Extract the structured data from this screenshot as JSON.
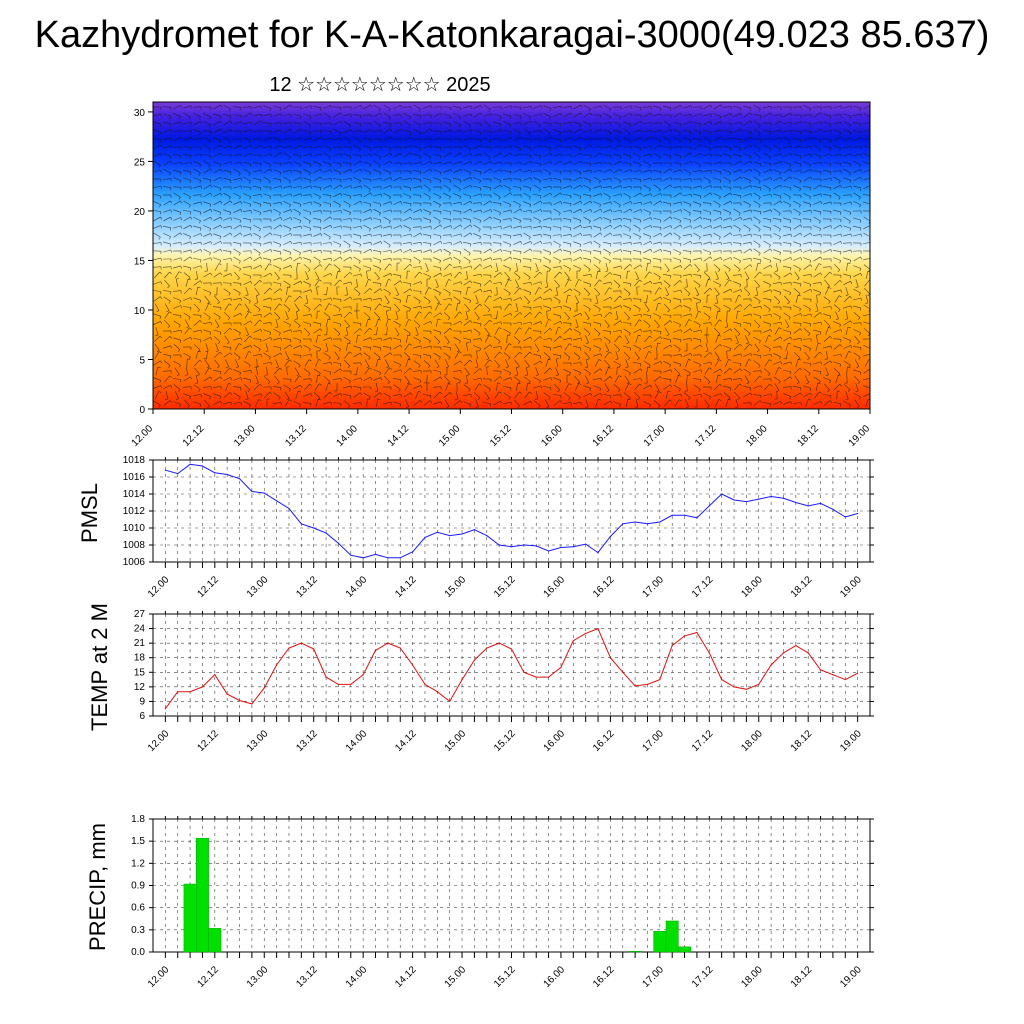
{
  "header": {
    "title": "Kazhydromet for K-A-Katonkaragai-3000(49.023 85.637)",
    "subtitle": "12 ☆☆☆☆☆☆☆☆ 2025"
  },
  "time_labels": [
    "12.00",
    "12.12",
    "13.00",
    "13.12",
    "14.00",
    "14.12",
    "15.00",
    "15.12",
    "16.00",
    "16.12",
    "17.00",
    "17.12",
    "18.00",
    "18.12",
    "19.00"
  ],
  "chart_data": [
    {
      "type": "heatmap",
      "name": "cross-section",
      "x_labels": [
        "12.00",
        "12.12",
        "13.00",
        "13.12",
        "14.00",
        "14.12",
        "15.00",
        "15.12",
        "16.00",
        "16.12",
        "17.00",
        "17.12",
        "18.00",
        "18.12",
        "19.00"
      ],
      "yticks": [
        0,
        5,
        10,
        15,
        20,
        25,
        30
      ],
      "ylim": [
        0,
        31
      ],
      "colors": {
        "low_warm": "#ff1a00",
        "mid_warm": "#ffa000",
        "transition": "#fff2a0",
        "light_cool": "#9fd8ff",
        "cool": "#1e8cff",
        "cold": "#0010e0",
        "top": "#6a2ad6"
      },
      "warm_maxima_x_index": [
        1.5,
        3.5,
        6.0,
        8.0,
        10.5
      ],
      "overlay": "wind barbs"
    },
    {
      "type": "line",
      "name": "PMSL",
      "ylabel": "PMSL",
      "ylim": [
        1006,
        1018
      ],
      "yticks": [
        1006,
        1008,
        1010,
        1012,
        1014,
        1016,
        1018
      ],
      "color": "#1a1aff",
      "x_labels": [
        "12.00",
        "12.12",
        "13.00",
        "13.12",
        "14.00",
        "14.12",
        "15.00",
        "15.12",
        "16.00",
        "16.12",
        "17.00",
        "17.12",
        "18.00",
        "18.12",
        "19.00"
      ],
      "values": [
        1016.8,
        1016.4,
        1017.5,
        1017.3,
        1016.5,
        1016.3,
        1015.8,
        1014.3,
        1014.1,
        1013.2,
        1012.3,
        1010.5,
        1010.0,
        1009.4,
        1008.2,
        1006.8,
        1006.5,
        1006.9,
        1006.5,
        1006.5,
        1007.2,
        1008.9,
        1009.5,
        1009.1,
        1009.3,
        1009.8,
        1009.1,
        1008.0,
        1007.8,
        1008.0,
        1007.9,
        1007.3,
        1007.7,
        1007.8,
        1008.1,
        1007.1,
        1009.0,
        1010.5,
        1010.7,
        1010.5,
        1010.7,
        1011.5,
        1011.5,
        1011.2,
        1012.6,
        1014.0,
        1013.3,
        1013.1,
        1013.4,
        1013.7,
        1013.5,
        1013.0,
        1012.6,
        1012.9,
        1012.2,
        1011.3,
        1011.7
      ]
    },
    {
      "type": "line",
      "name": "TEMP at 2 M",
      "ylabel": "TEMP at 2 M",
      "ylim": [
        6,
        27
      ],
      "yticks": [
        6,
        9,
        12,
        15,
        18,
        21,
        24,
        27
      ],
      "color": "#e01010",
      "x_labels": [
        "12.00",
        "12.12",
        "13.00",
        "13.12",
        "14.00",
        "14.12",
        "15.00",
        "15.12",
        "16.00",
        "16.12",
        "17.00",
        "17.12",
        "18.00",
        "18.12",
        "19.00"
      ],
      "values": [
        7.5,
        11.0,
        11.0,
        12.0,
        14.5,
        10.5,
        9.2,
        8.5,
        11.8,
        16.5,
        20.0,
        21.0,
        19.8,
        14.0,
        12.5,
        12.5,
        14.5,
        19.5,
        21.0,
        20.0,
        16.5,
        12.5,
        11.0,
        9.0,
        13.5,
        17.5,
        20.0,
        21.0,
        19.8,
        15.0,
        14.0,
        14.0,
        16.0,
        21.5,
        23.0,
        24.0,
        18.0,
        15.0,
        12.2,
        12.5,
        13.5,
        20.5,
        22.5,
        23.2,
        19.0,
        13.5,
        12.0,
        11.5,
        12.5,
        16.5,
        19.0,
        20.5,
        19.0,
        15.5,
        14.5,
        13.5,
        14.8
      ]
    },
    {
      "type": "bar",
      "name": "PRECIP",
      "ylabel": "PRECIP, mm",
      "ylim": [
        0,
        1.8
      ],
      "yticks": [
        "0.0",
        "0.3",
        "0.6",
        "0.9",
        "1.2",
        "1.5",
        "1.8"
      ],
      "color": "#00e000",
      "x_labels": [
        "12.00",
        "12.12",
        "13.00",
        "13.12",
        "14.00",
        "14.12",
        "15.00",
        "15.12",
        "16.00",
        "16.12",
        "17.00",
        "17.12",
        "18.00",
        "18.12",
        "19.00"
      ],
      "values": [
        0,
        0,
        0.92,
        1.54,
        0.32,
        0,
        0,
        0,
        0,
        0,
        0,
        0,
        0,
        0,
        0,
        0,
        0,
        0,
        0,
        0,
        0,
        0,
        0,
        0,
        0,
        0,
        0,
        0,
        0,
        0,
        0,
        0,
        0,
        0,
        0,
        0,
        0,
        0,
        0.01,
        0,
        0.28,
        0.42,
        0.07,
        0,
        0,
        0,
        0,
        0,
        0,
        0,
        0,
        0,
        0,
        0,
        0,
        0,
        0
      ]
    }
  ]
}
